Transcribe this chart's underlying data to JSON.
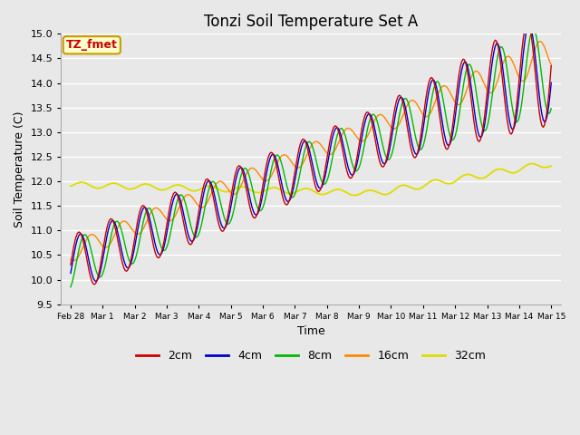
{
  "title": "Tonzi Soil Temperature Set A",
  "xlabel": "Time",
  "ylabel": "Soil Temperature (C)",
  "ylim": [
    9.5,
    15.0
  ],
  "fig_bg_color": "#e8e8e8",
  "plot_bg_color": "#e8e8e8",
  "annotation_text": "TZ_fmet",
  "annotation_bg": "#ffffcc",
  "annotation_border": "#cc9900",
  "series_colors": {
    "2cm": "#cc0000",
    "4cm": "#0000cc",
    "8cm": "#00bb00",
    "16cm": "#ff8800",
    "32cm": "#dddd00"
  },
  "legend_labels": [
    "2cm",
    "4cm",
    "8cm",
    "16cm",
    "32cm"
  ],
  "xtick_labels": [
    "Feb 28",
    "Mar 1",
    "Mar 2",
    "Mar 3",
    "Mar 4",
    "Mar 5",
    "Mar 6",
    "Mar 7",
    "Mar 8",
    "Mar 9",
    "Mar 10",
    "Mar 11",
    "Mar 12",
    "Mar 13",
    "Mar 14",
    "Mar 15"
  ],
  "ytick_values": [
    9.5,
    10.0,
    10.5,
    11.0,
    11.5,
    12.0,
    12.5,
    13.0,
    13.5,
    14.0,
    14.5,
    15.0
  ],
  "title_fontsize": 12,
  "axis_label_fontsize": 9,
  "tick_fontsize": 8
}
